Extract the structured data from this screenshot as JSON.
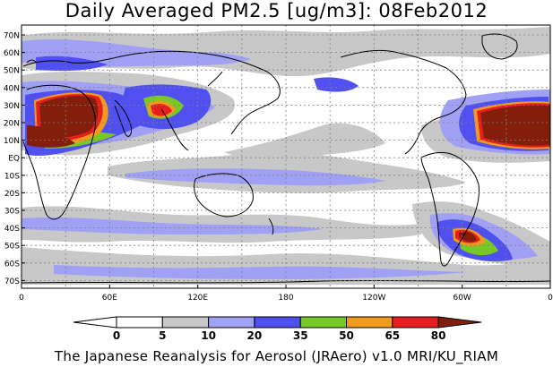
{
  "title": "Daily Averaged PM2.5 [ug/m3]: 08Feb2012",
  "footer": "The Japanese Reanalysis for Aerosol (JRAero) v1.0 MRI/KU_RIAM",
  "axes": {
    "lat_ticks": [
      "70N",
      "60N",
      "50N",
      "40N",
      "30N",
      "20N",
      "10N",
      "EQ",
      "10S",
      "20S",
      "30S",
      "40S",
      "50S",
      "60S",
      "70S"
    ],
    "lon_ticks": [
      "0",
      "60E",
      "120E",
      "180",
      "120W",
      "60W",
      "0"
    ]
  },
  "colorbar": {
    "labels": [
      "0",
      "5",
      "10",
      "20",
      "35",
      "50",
      "65",
      "80"
    ],
    "colors": [
      "#ffffff",
      "#ffffff",
      "#c8c8c8",
      "#a0a0f5",
      "#5050f0",
      "#78c828",
      "#f09a1e",
      "#e61e1e",
      "#821e0a"
    ]
  },
  "colors": {
    "ocean_bg": "#ffffff",
    "gray": "#c8c8c8",
    "lightblue": "#a0a0f5",
    "blue": "#5050f0",
    "green": "#78c828",
    "orange": "#f09a1e",
    "red": "#e61e1e",
    "darkred": "#821e0a"
  }
}
